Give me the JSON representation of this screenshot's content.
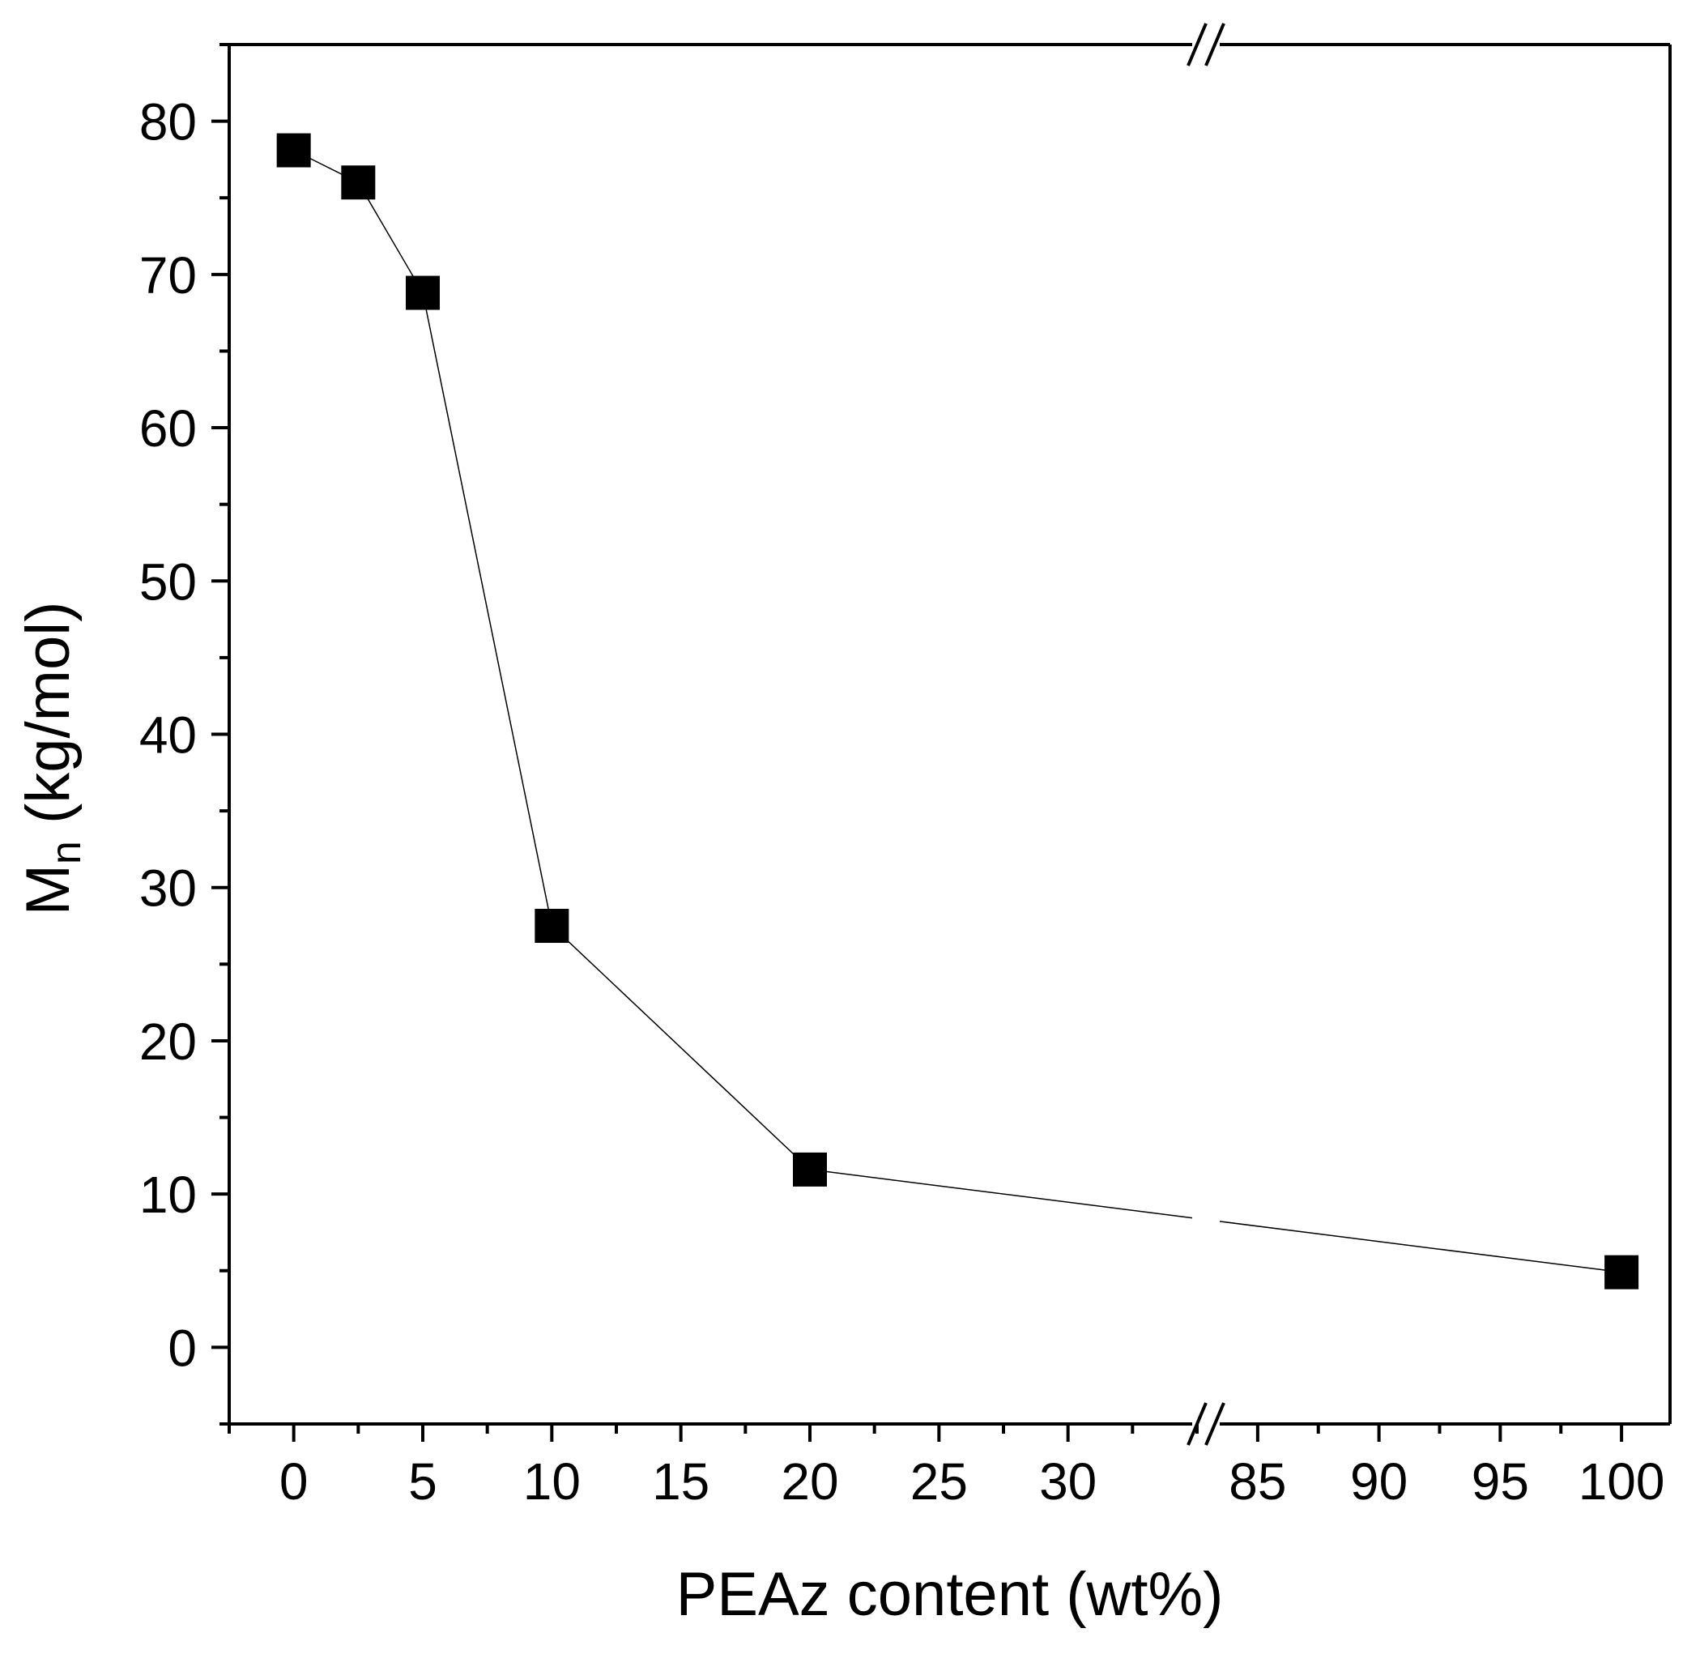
{
  "chart_data": {
    "type": "scatter",
    "xlabel": "PEAz content (wt%)",
    "ylabel_main": "M",
    "ylabel_sub": "n",
    "ylabel_rest": " (kg/mol)",
    "ylim": [
      -5,
      85
    ],
    "yticks": [
      0,
      10,
      20,
      30,
      40,
      50,
      60,
      70,
      80
    ],
    "x_segments": [
      {
        "range": [
          -2.5,
          35
        ],
        "ticks": [
          0,
          5,
          10,
          15,
          20,
          25,
          30
        ]
      },
      {
        "range": [
          82.5,
          102
        ],
        "ticks": [
          85,
          90,
          95,
          100
        ]
      }
    ],
    "axis_break": true,
    "series": [
      {
        "marker": "square",
        "color": "#000000",
        "connected": true,
        "x": [
          0,
          2.5,
          5,
          10,
          20,
          100
        ],
        "y": [
          78.1,
          76.0,
          68.8,
          27.5,
          11.6,
          4.9
        ]
      }
    ]
  }
}
